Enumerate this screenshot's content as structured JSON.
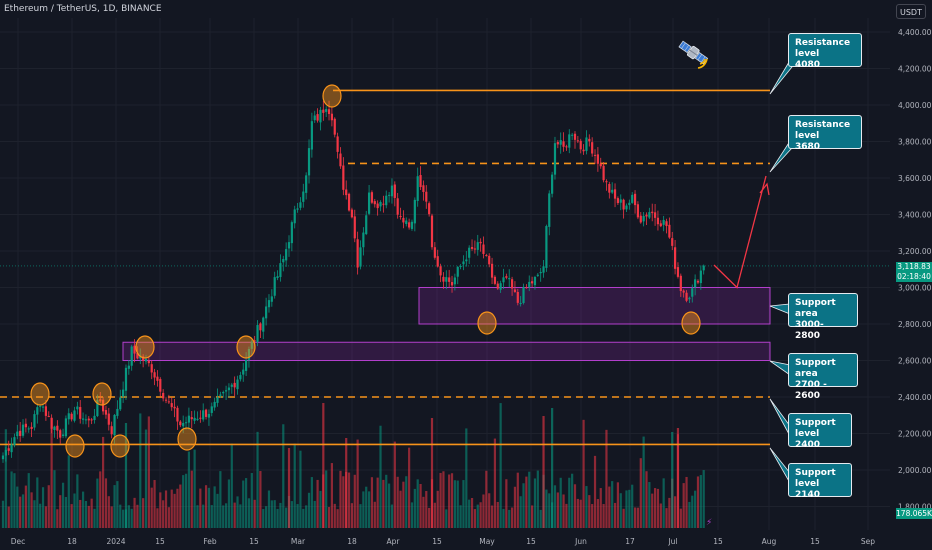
{
  "title": "Ethereum / TetherUS, 1D, BINANCE",
  "unit": "USDT",
  "current_price": "3,118.83",
  "countdown": "02:18:40",
  "volume_label": "178.065K",
  "annotations": [
    {
      "key": "res4080",
      "line1": "Resistance level",
      "line2": "4080"
    },
    {
      "key": "res3680",
      "line1": "Resistance level",
      "line2": "3680"
    },
    {
      "key": "sup3000",
      "line1": "Support area",
      "line2": "3000- 2800"
    },
    {
      "key": "sup2700",
      "line1": "Support area",
      "line2": "2700 - 2600"
    },
    {
      "key": "sup2400",
      "line1": "Support level",
      "line2": "2400"
    },
    {
      "key": "sup2140",
      "line1": "Support level",
      "line2": "2140"
    }
  ],
  "colors": {
    "up": "#089981",
    "down": "#f23645",
    "level": "#f7931a",
    "zone": "#9c27b0",
    "arrow": "#f23645",
    "tag": "#0b7386"
  },
  "chart_data": {
    "type": "candlestick",
    "x_ticks": [
      "Dec",
      "18",
      "2024",
      "15",
      "Feb",
      "15",
      "Mar",
      "18",
      "Apr",
      "15",
      "May",
      "15",
      "Jun",
      "17",
      "Jul",
      "15",
      "Aug",
      "15",
      "Sep"
    ],
    "y_ticks": [
      "4,400.00",
      "4,200.00",
      "4,000.00",
      "3,800.00",
      "3,600.00",
      "3,400.00",
      "3,200.00",
      "3,000.00",
      "2,800.00",
      "2,600.00",
      "2,400.00",
      "2,200.00",
      "2,000.00",
      "1,800.00"
    ],
    "ylim": [
      1780,
      4460
    ],
    "levels": [
      {
        "value": 4080,
        "style": "solid",
        "from_bar": 114
      },
      {
        "value": 3680,
        "style": "dashed",
        "from_bar": 120
      },
      {
        "value": 2400,
        "style": "dashed",
        "from_bar": 0
      },
      {
        "value": 2140,
        "style": "solid",
        "from_bar": 0
      }
    ],
    "zones": [
      {
        "low": 2800,
        "high": 3000,
        "from_bar": 144
      },
      {
        "low": 2600,
        "high": 2700,
        "from_bar": 42
      }
    ],
    "projection": [
      [
        3120,
        3000,
        3600
      ]
    ],
    "close_path": [
      [
        0,
        2080
      ],
      [
        5,
        2210
      ],
      [
        10,
        2240
      ],
      [
        13,
        2380
      ],
      [
        17,
        2250
      ],
      [
        20,
        2200
      ],
      [
        25,
        2330
      ],
      [
        30,
        2260
      ],
      [
        34,
        2380
      ],
      [
        38,
        2220
      ],
      [
        42,
        2470
      ],
      [
        45,
        2650
      ],
      [
        48,
        2620
      ],
      [
        52,
        2560
      ],
      [
        57,
        2390
      ],
      [
        62,
        2250
      ],
      [
        67,
        2290
      ],
      [
        73,
        2330
      ],
      [
        78,
        2420
      ],
      [
        83,
        2530
      ],
      [
        86,
        2650
      ],
      [
        90,
        2800
      ],
      [
        94,
        2980
      ],
      [
        98,
        3150
      ],
      [
        102,
        3400
      ],
      [
        106,
        3600
      ],
      [
        108,
        3900
      ],
      [
        111,
        3950
      ],
      [
        113,
        4010
      ],
      [
        115,
        3950
      ],
      [
        117,
        3720
      ],
      [
        119,
        3560
      ],
      [
        122,
        3400
      ],
      [
        124,
        3140
      ],
      [
        128,
        3500
      ],
      [
        132,
        3460
      ],
      [
        136,
        3560
      ],
      [
        139,
        3370
      ],
      [
        143,
        3330
      ],
      [
        145,
        3600
      ],
      [
        148,
        3500
      ],
      [
        150,
        3250
      ],
      [
        153,
        3080
      ],
      [
        157,
        3020
      ],
      [
        162,
        3180
      ],
      [
        167,
        3230
      ],
      [
        170,
        3100
      ],
      [
        173,
        2980
      ],
      [
        176,
        3050
      ],
      [
        180,
        2920
      ],
      [
        184,
        3020
      ],
      [
        187,
        3050
      ],
      [
        189,
        3120
      ],
      [
        191,
        3500
      ],
      [
        193,
        3800
      ],
      [
        196,
        3760
      ],
      [
        199,
        3860
      ],
      [
        202,
        3770
      ],
      [
        205,
        3800
      ],
      [
        208,
        3700
      ],
      [
        211,
        3560
      ],
      [
        214,
        3480
      ],
      [
        217,
        3450
      ],
      [
        220,
        3480
      ],
      [
        223,
        3380
      ],
      [
        226,
        3420
      ],
      [
        229,
        3380
      ],
      [
        232,
        3340
      ],
      [
        235,
        3130
      ],
      [
        237,
        3000
      ],
      [
        239,
        2960
      ],
      [
        241,
        2980
      ],
      [
        243,
        3060
      ],
      [
        245,
        3120
      ]
    ]
  }
}
